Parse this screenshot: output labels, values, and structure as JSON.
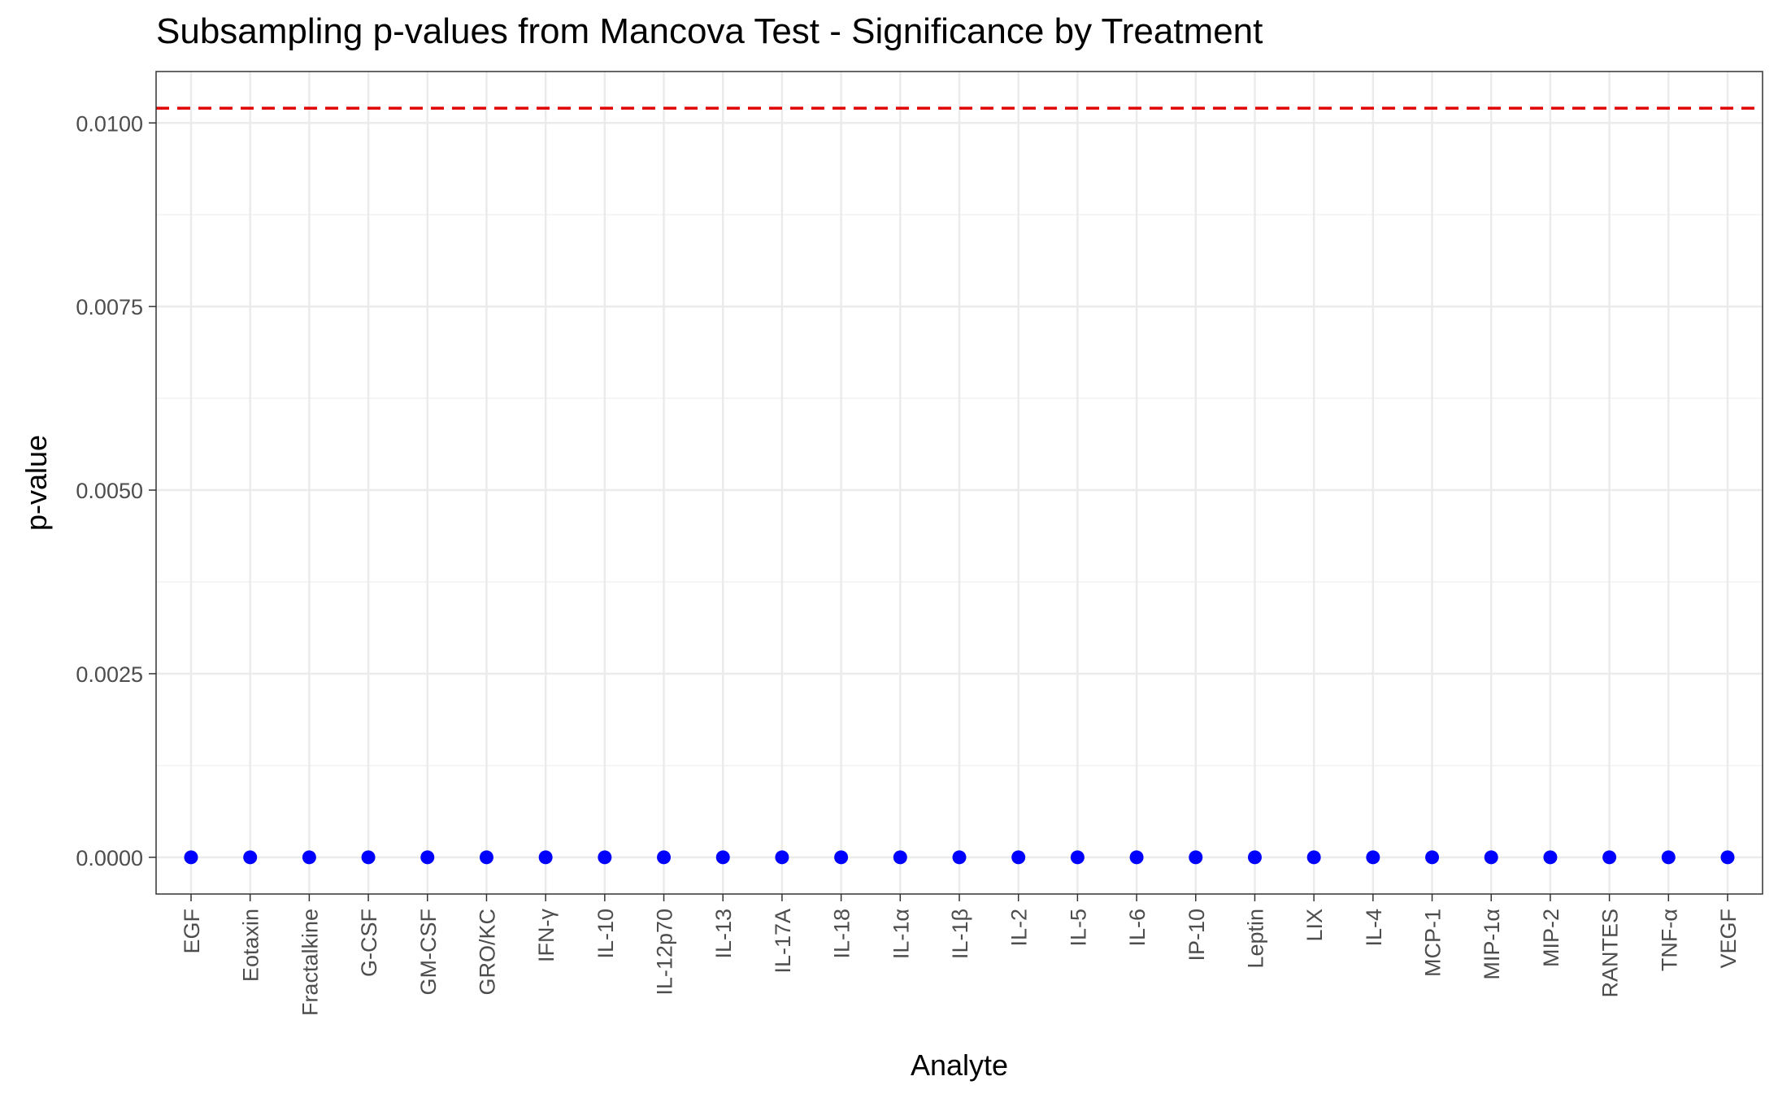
{
  "chart_data": {
    "type": "scatter",
    "title": "Subsampling p-values from Mancova Test - Significance by Treatment",
    "xlabel": "Analyte",
    "ylabel": "p-value",
    "categories": [
      "EGF",
      "Eotaxin",
      "Fractalkine",
      "G-CSF",
      "GM-CSF",
      "GRO/KC",
      "IFN-γ",
      "IL-10",
      "IL-12p70",
      "IL-13",
      "IL-17A",
      "IL-18",
      "IL-1α",
      "IL-1β",
      "IL-2",
      "IL-5",
      "IL-6",
      "IP-10",
      "Leptin",
      "LIX",
      "IL-4",
      "MCP-1",
      "MIP-1α",
      "MIP-2",
      "RANTES",
      "TNF-α",
      "VEGF"
    ],
    "values": [
      0,
      0,
      0,
      0,
      0,
      0,
      0,
      0,
      0,
      0,
      0,
      0,
      0,
      0,
      0,
      0,
      0,
      0,
      0,
      0,
      0,
      0,
      0,
      0,
      0,
      0,
      0
    ],
    "ylim": [
      -0.0005,
      0.0107
    ],
    "yticks": [
      0.0,
      0.0025,
      0.005,
      0.0075,
      0.01
    ],
    "ytick_labels": [
      "0.0000",
      "0.0025",
      "0.0050",
      "0.0075",
      "0.0100"
    ],
    "reference_line": {
      "y": 0.0102,
      "style": "dashed",
      "color": "#e00000"
    },
    "point_color": "#0000ff",
    "grid": true,
    "legend": "none"
  }
}
